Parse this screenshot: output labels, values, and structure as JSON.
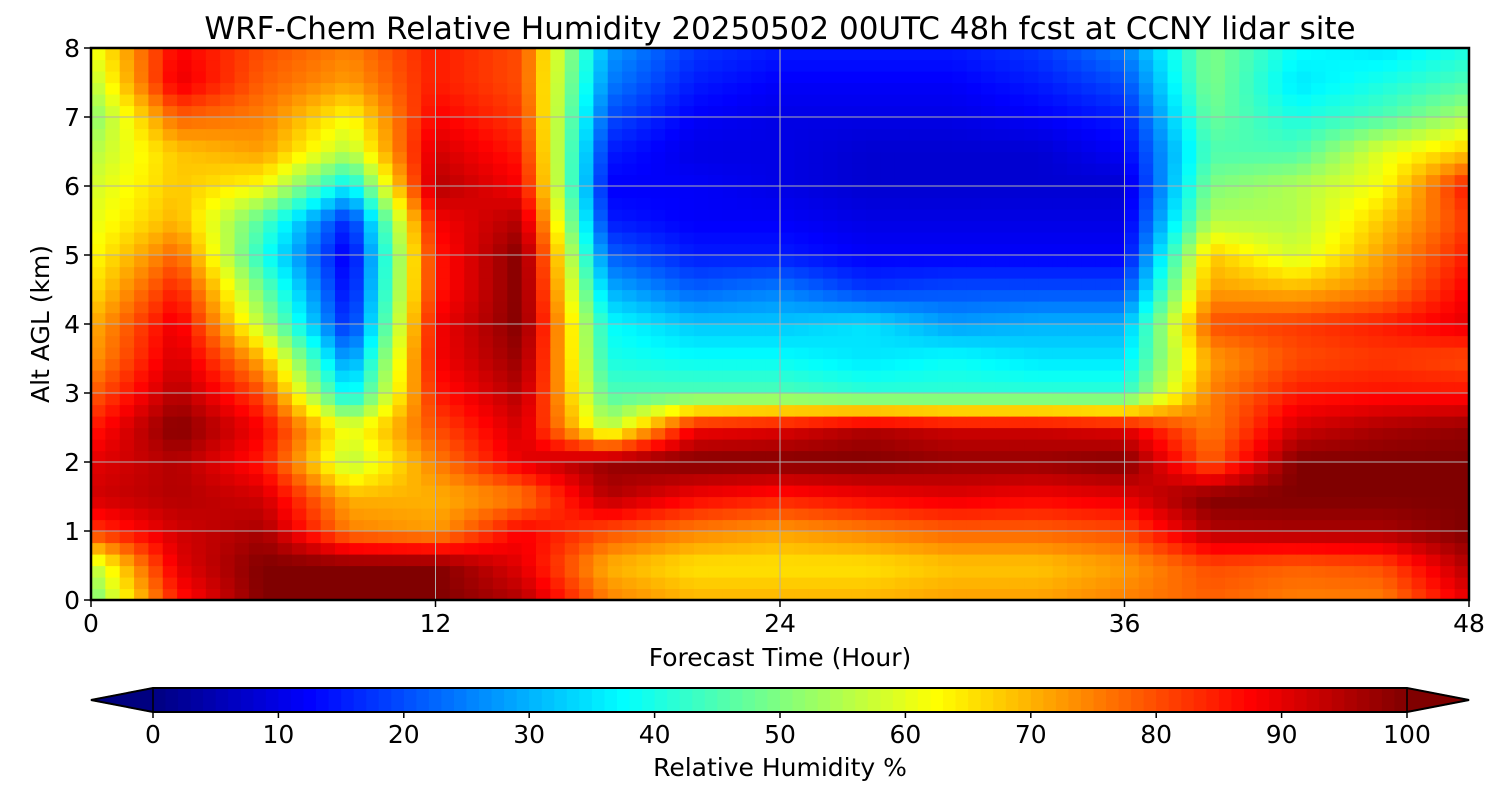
{
  "chart_data": {
    "type": "heatmap",
    "title": "WRF-Chem Relative Humidity 20250502 00UTC 48h fcst at CCNY lidar site",
    "xlabel": "Forecast Time (Hour)",
    "ylabel": "Alt AGL (km)",
    "xlim": [
      0,
      48
    ],
    "ylim": [
      0,
      8
    ],
    "xticks": [
      "0",
      "12",
      "24",
      "36",
      "48"
    ],
    "yticks": [
      "0",
      "1",
      "2",
      "3",
      "4",
      "5",
      "6",
      "7",
      "8"
    ],
    "grid": true,
    "colormap": "jet",
    "colorbar": {
      "label": "Relative Humidity %",
      "orientation": "horizontal",
      "placement": "bottom",
      "range": [
        0,
        100
      ],
      "extend": "both",
      "ticks": [
        "0",
        "10",
        "20",
        "30",
        "40",
        "50",
        "60",
        "70",
        "80",
        "90",
        "100"
      ]
    },
    "x": [
      0,
      3,
      6,
      9,
      12,
      15,
      18,
      21,
      24,
      27,
      30,
      33,
      36,
      39,
      42,
      45,
      48
    ],
    "y": [
      0,
      0.5,
      1,
      1.5,
      2,
      2.5,
      3,
      3.5,
      4,
      4.5,
      5,
      5.5,
      6,
      6.5,
      7,
      7.5,
      8
    ],
    "values": [
      [
        48,
        85,
        100,
        100,
        100,
        95,
        75,
        70,
        70,
        70,
        72,
        72,
        75,
        78,
        75,
        75,
        90
      ],
      [
        55,
        90,
        100,
        100,
        100,
        90,
        70,
        65,
        65,
        65,
        68,
        68,
        72,
        80,
        78,
        80,
        95
      ],
      [
        82,
        92,
        96,
        75,
        72,
        88,
        80,
        75,
        72,
        75,
        78,
        78,
        80,
        95,
        96,
        96,
        100
      ],
      [
        92,
        95,
        92,
        70,
        70,
        75,
        95,
        88,
        85,
        88,
        90,
        88,
        90,
        100,
        100,
        100,
        100
      ],
      [
        90,
        95,
        85,
        55,
        75,
        90,
        98,
        100,
        100,
        100,
        98,
        98,
        100,
        78,
        100,
        100,
        100
      ],
      [
        85,
        100,
        88,
        60,
        80,
        92,
        55,
        88,
        90,
        95,
        92,
        92,
        90,
        75,
        92,
        96,
        98
      ],
      [
        78,
        95,
        80,
        35,
        85,
        95,
        45,
        45,
        45,
        42,
        42,
        42,
        42,
        75,
        85,
        86,
        86
      ],
      [
        72,
        92,
        70,
        25,
        88,
        98,
        40,
        38,
        38,
        35,
        38,
        35,
        35,
        72,
        80,
        82,
        80
      ],
      [
        70,
        90,
        55,
        15,
        88,
        100,
        38,
        32,
        32,
        35,
        28,
        30,
        30,
        80,
        82,
        85,
        90
      ],
      [
        65,
        85,
        48,
        12,
        85,
        100,
        30,
        22,
        25,
        18,
        20,
        20,
        20,
        72,
        70,
        75,
        88
      ],
      [
        62,
        78,
        40,
        10,
        85,
        100,
        22,
        15,
        15,
        12,
        12,
        12,
        12,
        68,
        58,
        72,
        85
      ],
      [
        60,
        70,
        45,
        15,
        88,
        95,
        15,
        12,
        12,
        10,
        10,
        10,
        10,
        55,
        55,
        68,
        82
      ],
      [
        58,
        68,
        62,
        35,
        95,
        88,
        12,
        12,
        10,
        8,
        8,
        8,
        8,
        50,
        55,
        62,
        86
      ],
      [
        55,
        68,
        72,
        55,
        92,
        85,
        15,
        10,
        10,
        8,
        8,
        8,
        12,
        45,
        45,
        60,
        68
      ],
      [
        50,
        78,
        75,
        62,
        88,
        82,
        20,
        12,
        10,
        10,
        10,
        12,
        15,
        48,
        40,
        45,
        55
      ],
      [
        55,
        90,
        78,
        72,
        85,
        80,
        25,
        15,
        12,
        12,
        12,
        15,
        20,
        50,
        35,
        40,
        45
      ],
      [
        60,
        88,
        80,
        75,
        85,
        80,
        28,
        18,
        15,
        15,
        15,
        18,
        25,
        50,
        38,
        35,
        40
      ]
    ]
  }
}
